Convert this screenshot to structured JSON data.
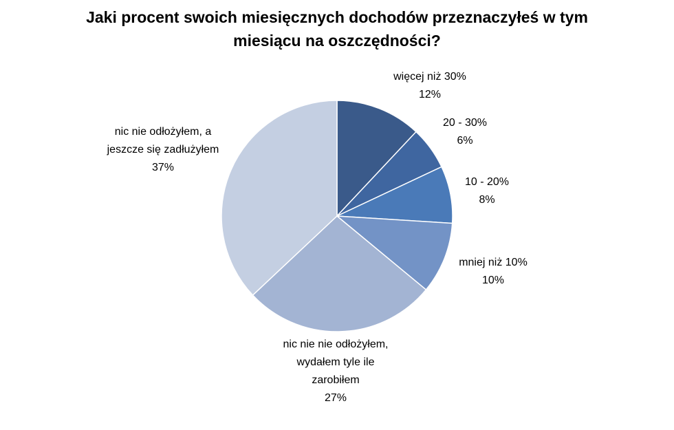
{
  "chart_data": {
    "type": "pie",
    "title": "Jaki procent swoich miesięcznych dochodów przeznaczyłeś w tym miesiącu na oszczędności?",
    "categories": [
      "więcej niż 30%",
      "20 - 30%",
      "10 - 20%",
      "mniej niż 10%",
      "nic nie nie odłożyłem, wydałem tyle ile zarobiłem",
      "nic nie odłożyłem, a jeszcze się zadłużyłem"
    ],
    "values": [
      12,
      6,
      8,
      10,
      27,
      37
    ],
    "value_labels": [
      "12%",
      "6%",
      "8%",
      "10%",
      "27%",
      "37%"
    ],
    "colors": [
      "#3a5a8a",
      "#3f66a0",
      "#4a7ab8",
      "#7393c6",
      "#a3b4d3",
      "#c4cfe2"
    ]
  }
}
